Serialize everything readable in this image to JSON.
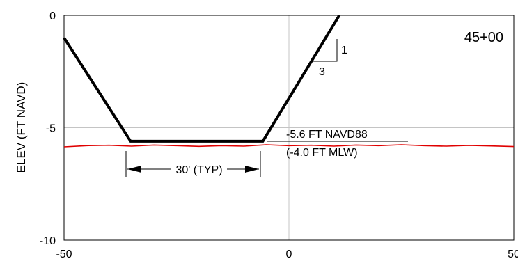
{
  "chart_data": {
    "type": "line",
    "title": "",
    "xlabel": "",
    "ylabel": "ELEV (FT NAVD)",
    "xlim": [
      -50,
      50
    ],
    "ylim": [
      -10,
      0
    ],
    "x_ticks": [
      -50,
      0,
      50
    ],
    "y_ticks": [
      0,
      -5,
      -10
    ],
    "x_tick_labels": [
      "-50",
      "0",
      "50"
    ],
    "y_tick_labels": [
      "0",
      "-5",
      "-10"
    ],
    "grid": {
      "x": [
        0
      ],
      "y": [
        -5
      ]
    },
    "series": [
      {
        "color": "#000000",
        "style": "thick-solid",
        "x": [
          -50,
          -35.2,
          -5.8,
          11.2
        ],
        "y": [
          -1.0,
          -5.6,
          -5.6,
          0
        ]
      },
      {
        "color": "#e00000",
        "style": "thin-solid",
        "x": [
          -50,
          -45,
          -40,
          -35,
          -30,
          -25,
          -20,
          -15,
          -10,
          -5,
          0,
          5,
          10,
          15,
          20,
          25,
          30,
          35,
          40,
          45,
          50
        ],
        "y": [
          -5.85,
          -5.8,
          -5.78,
          -5.82,
          -5.77,
          -5.8,
          -5.83,
          -5.8,
          -5.82,
          -5.76,
          -5.8,
          -5.78,
          -5.82,
          -5.77,
          -5.8,
          -5.76,
          -5.8,
          -5.82,
          -5.79,
          -5.81,
          -5.84
        ]
      }
    ],
    "annotations": {
      "station": "45+00",
      "elevation_label": "-5.6 FT NAVD88",
      "mlw_label": "(-4.0 FT MLW)",
      "width_label": "30' (TYP)",
      "slope_rise": "1",
      "slope_run": "3"
    }
  }
}
